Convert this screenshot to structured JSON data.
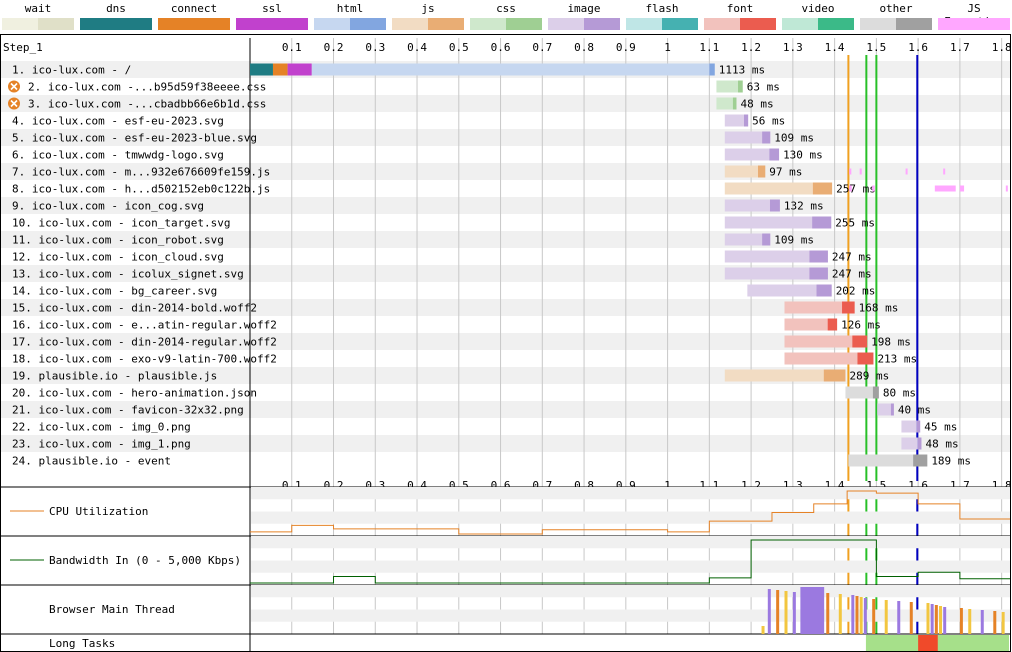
{
  "legend": [
    {
      "label": "wait",
      "colors": [
        "#f0f0e0",
        "#e0e0c8"
      ]
    },
    {
      "label": "dns",
      "colors": [
        "#1f7c83",
        "#1f7c83"
      ]
    },
    {
      "label": "connect",
      "colors": [
        "#e58226",
        "#e58226"
      ]
    },
    {
      "label": "ssl",
      "colors": [
        "#c141cd",
        "#c141cd"
      ]
    },
    {
      "label": "html",
      "colors": [
        "#c6d7f0",
        "#82a6e0"
      ]
    },
    {
      "label": "js",
      "colors": [
        "#f2dcc3",
        "#e9ad74"
      ]
    },
    {
      "label": "css",
      "colors": [
        "#cfe8cc",
        "#9fcf93"
      ]
    },
    {
      "label": "image",
      "colors": [
        "#dccfe9",
        "#b59ad6"
      ]
    },
    {
      "label": "flash",
      "colors": [
        "#bfe6e6",
        "#45b1b1"
      ]
    },
    {
      "label": "font",
      "colors": [
        "#f2c2bd",
        "#eb5c4f"
      ]
    },
    {
      "label": "video",
      "colors": [
        "#bfe8d6",
        "#3bba88"
      ]
    },
    {
      "label": "other",
      "colors": [
        "#dcdcdc",
        "#a0a0a0"
      ]
    },
    {
      "label": "JS Execution",
      "colors": [
        "#ffa7ff",
        "#ffa7ff"
      ]
    }
  ],
  "step_label": "Step_1",
  "chart_data": {
    "type": "waterfall",
    "x_axis": {
      "unit": "s",
      "min": 0,
      "max": 1.82,
      "ticks": [
        "0.1",
        "0.2",
        "0.3",
        "0.4",
        "0.5",
        "0.6",
        "0.7",
        "0.8",
        "0.9",
        "1",
        "1.1",
        "1.2",
        "1.3",
        "1.4",
        "1.5",
        "1.6",
        "1.7",
        "1.8"
      ]
    },
    "markers": [
      {
        "time": 1.433,
        "color": "#f0a020"
      },
      {
        "time": 1.476,
        "color": "#28c028"
      },
      {
        "time": 1.5,
        "color": "#28c028"
      },
      {
        "time": 1.598,
        "color": "#0000c0"
      }
    ],
    "requests": [
      {
        "label": "1. ico-lux.com - /",
        "type": "html",
        "start": 0.0,
        "wait": 0.0,
        "dns": 0.055,
        "connect": 0.035,
        "ssl": 0.058,
        "ttfb_end": 1.1,
        "end": 1.113,
        "duration": "1113 ms",
        "blocked": false
      },
      {
        "label": "2. ico-lux.com -...b95d59f38eeee.css",
        "type": "css",
        "start": 1.117,
        "end": 1.18,
        "duration": "63 ms",
        "blocked": true
      },
      {
        "label": "3. ico-lux.com -...cbadbb66e6b1d.css",
        "type": "css",
        "start": 1.117,
        "end": 1.165,
        "duration": "48 ms",
        "blocked": true
      },
      {
        "label": "4. ico-lux.com - esf-eu-2023.svg",
        "type": "image",
        "start": 1.137,
        "end": 1.193,
        "duration": "56 ms",
        "blocked": false
      },
      {
        "label": "5. ico-lux.com - esf-eu-2023-blue.svg",
        "type": "image",
        "start": 1.137,
        "end": 1.246,
        "duration": "109 ms",
        "blocked": false
      },
      {
        "label": "6. ico-lux.com - tmwwdg-logo.svg",
        "type": "image",
        "start": 1.137,
        "end": 1.267,
        "duration": "130 ms",
        "blocked": false
      },
      {
        "label": "7. ico-lux.com - m...932e676609fe159.js",
        "type": "js",
        "start": 1.137,
        "end": 1.234,
        "duration": "97 ms",
        "blocked": false
      },
      {
        "label": "8. ico-lux.com - h...d502152eb0c122b.js",
        "type": "js",
        "start": 1.137,
        "end": 1.394,
        "duration": "257 ms",
        "blocked": false
      },
      {
        "label": "9. ico-lux.com - icon_cog.svg",
        "type": "image",
        "start": 1.137,
        "end": 1.269,
        "duration": "132 ms",
        "blocked": false
      },
      {
        "label": "10. ico-lux.com - icon_target.svg",
        "type": "image",
        "start": 1.137,
        "end": 1.392,
        "duration": "255 ms",
        "blocked": false
      },
      {
        "label": "11. ico-lux.com - icon_robot.svg",
        "type": "image",
        "start": 1.137,
        "end": 1.246,
        "duration": "109 ms",
        "blocked": false
      },
      {
        "label": "12. ico-lux.com - icon_cloud.svg",
        "type": "image",
        "start": 1.137,
        "end": 1.384,
        "duration": "247 ms",
        "blocked": false
      },
      {
        "label": "13. ico-lux.com - icolux_signet.svg",
        "type": "image",
        "start": 1.137,
        "end": 1.384,
        "duration": "247 ms",
        "blocked": false
      },
      {
        "label": "14. ico-lux.com - bg_career.svg",
        "type": "image",
        "start": 1.191,
        "end": 1.393,
        "duration": "202 ms",
        "blocked": false
      },
      {
        "label": "15. ico-lux.com - din-2014-bold.woff2",
        "type": "font",
        "start": 1.28,
        "end": 1.448,
        "duration": "168 ms",
        "blocked": false
      },
      {
        "label": "16. ico-lux.com - e...atin-regular.woff2",
        "type": "font",
        "start": 1.28,
        "end": 1.406,
        "duration": "126 ms",
        "blocked": false
      },
      {
        "label": "17. ico-lux.com - din-2014-regular.woff2",
        "type": "font",
        "start": 1.28,
        "end": 1.478,
        "duration": "198 ms",
        "blocked": false
      },
      {
        "label": "18. ico-lux.com - exo-v9-latin-700.woff2",
        "type": "font",
        "start": 1.28,
        "end": 1.493,
        "duration": "213 ms",
        "blocked": false
      },
      {
        "label": "19. plausible.io - plausible.js",
        "type": "js",
        "start": 1.137,
        "end": 1.426,
        "duration": "289 ms",
        "blocked": false
      },
      {
        "label": "20. ico-lux.com - hero-animation.json",
        "type": "other",
        "start": 1.426,
        "end": 1.506,
        "duration": "80 ms",
        "blocked": false
      },
      {
        "label": "21. ico-lux.com - favicon-32x32.png",
        "type": "image",
        "start": 1.502,
        "end": 1.542,
        "duration": "40 ms",
        "blocked": false
      },
      {
        "label": "22. ico-lux.com - img_0.png",
        "type": "image",
        "start": 1.56,
        "end": 1.605,
        "duration": "45 ms",
        "blocked": false
      },
      {
        "label": "23. ico-lux.com - img_1.png",
        "type": "image",
        "start": 1.56,
        "end": 1.608,
        "duration": "48 ms",
        "blocked": false
      },
      {
        "label": "24. plausible.io - event",
        "type": "other",
        "start": 1.433,
        "end": 1.622,
        "duration": "189 ms",
        "blocked": false
      }
    ],
    "cpu_utilization": {
      "label": "CPU Utilization",
      "points": [
        [
          0,
          0.05
        ],
        [
          0.1,
          0.05
        ],
        [
          0.1,
          0.2
        ],
        [
          0.2,
          0.2
        ],
        [
          0.2,
          0.12
        ],
        [
          0.5,
          0.12
        ],
        [
          0.5,
          0.0
        ],
        [
          0.7,
          0.0
        ],
        [
          0.7,
          0.1
        ],
        [
          1.0,
          0.1
        ],
        [
          1.0,
          0.05
        ],
        [
          1.1,
          0.05
        ],
        [
          1.1,
          0.3
        ],
        [
          1.25,
          0.3
        ],
        [
          1.25,
          0.5
        ],
        [
          1.35,
          0.5
        ],
        [
          1.35,
          0.7
        ],
        [
          1.43,
          0.7
        ],
        [
          1.43,
          1.0
        ],
        [
          1.5,
          1.0
        ],
        [
          1.5,
          0.95
        ],
        [
          1.6,
          0.95
        ],
        [
          1.6,
          0.7
        ],
        [
          1.7,
          0.7
        ],
        [
          1.7,
          0.35
        ],
        [
          1.82,
          0.35
        ]
      ]
    },
    "bandwidth_in": {
      "label": "Bandwidth In (0 - 5,000 Kbps)",
      "points": [
        [
          0,
          0
        ],
        [
          0.2,
          0
        ],
        [
          0.2,
          0.15
        ],
        [
          0.3,
          0.15
        ],
        [
          0.3,
          0
        ],
        [
          1.1,
          0
        ],
        [
          1.1,
          0.12
        ],
        [
          1.2,
          0.12
        ],
        [
          1.2,
          1.0
        ],
        [
          1.5,
          1.0
        ],
        [
          1.5,
          0.15
        ],
        [
          1.6,
          0.15
        ],
        [
          1.6,
          0.25
        ],
        [
          1.7,
          0.25
        ],
        [
          1.7,
          0.1
        ],
        [
          1.82,
          0.1
        ]
      ]
    },
    "main_thread": {
      "label": "Browser Main Thread"
    },
    "long_tasks": {
      "label": "Long Tasks"
    }
  }
}
